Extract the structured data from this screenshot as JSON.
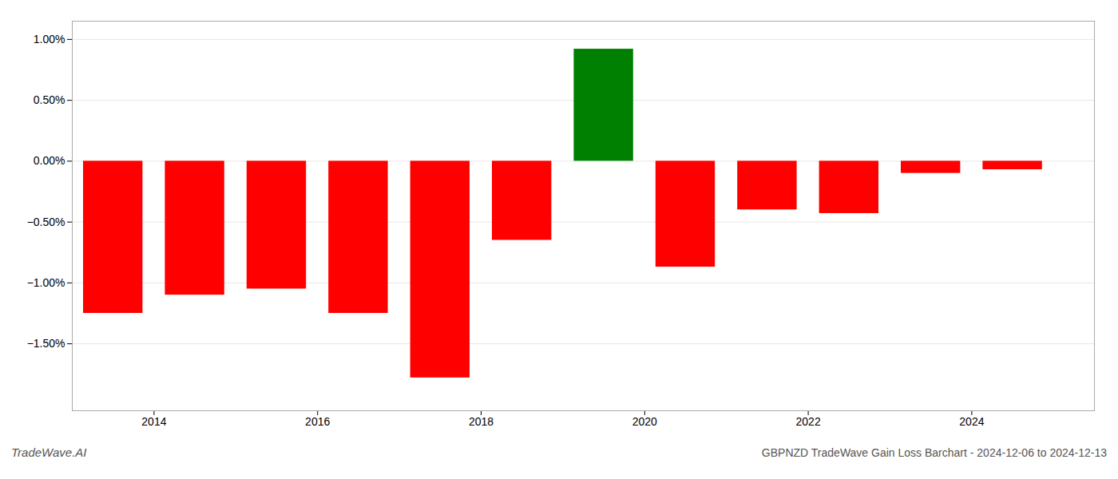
{
  "chart_data": {
    "type": "bar",
    "title": "GBPNZD TradeWave Gain Loss Barchart - 2024-12-06 to 2024-12-13",
    "annotations": [
      "TradeWave.AI"
    ],
    "x": [
      2013.5,
      2014.5,
      2015.5,
      2016.5,
      2017.5,
      2018.5,
      2019.5,
      2020.5,
      2021.5,
      2022.5,
      2023.5,
      2024.5
    ],
    "values": [
      -1.25,
      -1.1,
      -1.05,
      -1.25,
      -1.78,
      -0.65,
      0.92,
      -0.87,
      -0.4,
      -0.43,
      -0.1,
      -0.07
    ],
    "colors": [
      "#ff0000",
      "#ff0000",
      "#ff0000",
      "#ff0000",
      "#ff0000",
      "#ff0000",
      "#008000",
      "#ff0000",
      "#ff0000",
      "#ff0000",
      "#ff0000",
      "#ff0000"
    ],
    "xlim": [
      2013.0,
      2025.5
    ],
    "xticks": [
      2014,
      2016,
      2018,
      2020,
      2022,
      2024
    ],
    "ylim": [
      -2.05,
      1.15
    ],
    "yticks": [
      {
        "value": -1.5,
        "label": "−1.50%"
      },
      {
        "value": -1.0,
        "label": "−1.00%"
      },
      {
        "value": -0.5,
        "label": "−0.50%"
      },
      {
        "value": 0.0,
        "label": "0.00%"
      },
      {
        "value": 0.5,
        "label": "0.50%"
      },
      {
        "value": 1.0,
        "label": "1.00%"
      }
    ],
    "grid": true
  }
}
